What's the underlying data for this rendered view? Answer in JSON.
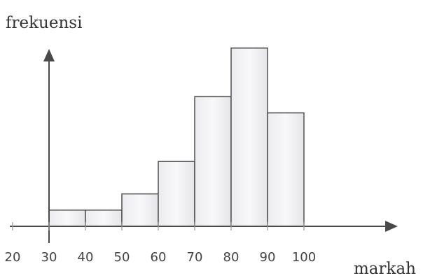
{
  "chart_data": {
    "type": "bar",
    "subtype": "histogram",
    "ylabel": "frekuensi",
    "xlabel": "markah",
    "x_ticks": [
      20,
      30,
      40,
      50,
      60,
      70,
      80,
      90,
      100
    ],
    "xlim": [
      20,
      100
    ],
    "bins": [
      {
        "from": 30,
        "to": 40,
        "value": 1
      },
      {
        "from": 40,
        "to": 50,
        "value": 1
      },
      {
        "from": 50,
        "to": 60,
        "value": 2
      },
      {
        "from": 60,
        "to": 70,
        "value": 4
      },
      {
        "from": 70,
        "to": 80,
        "value": 8
      },
      {
        "from": 80,
        "to": 90,
        "value": 11
      },
      {
        "from": 90,
        "to": 100,
        "value": 7
      }
    ],
    "ylim": [
      0,
      11.5
    ],
    "grid": false,
    "bar_color": "#f2f2f4",
    "bar_edge_color": "#505050"
  }
}
